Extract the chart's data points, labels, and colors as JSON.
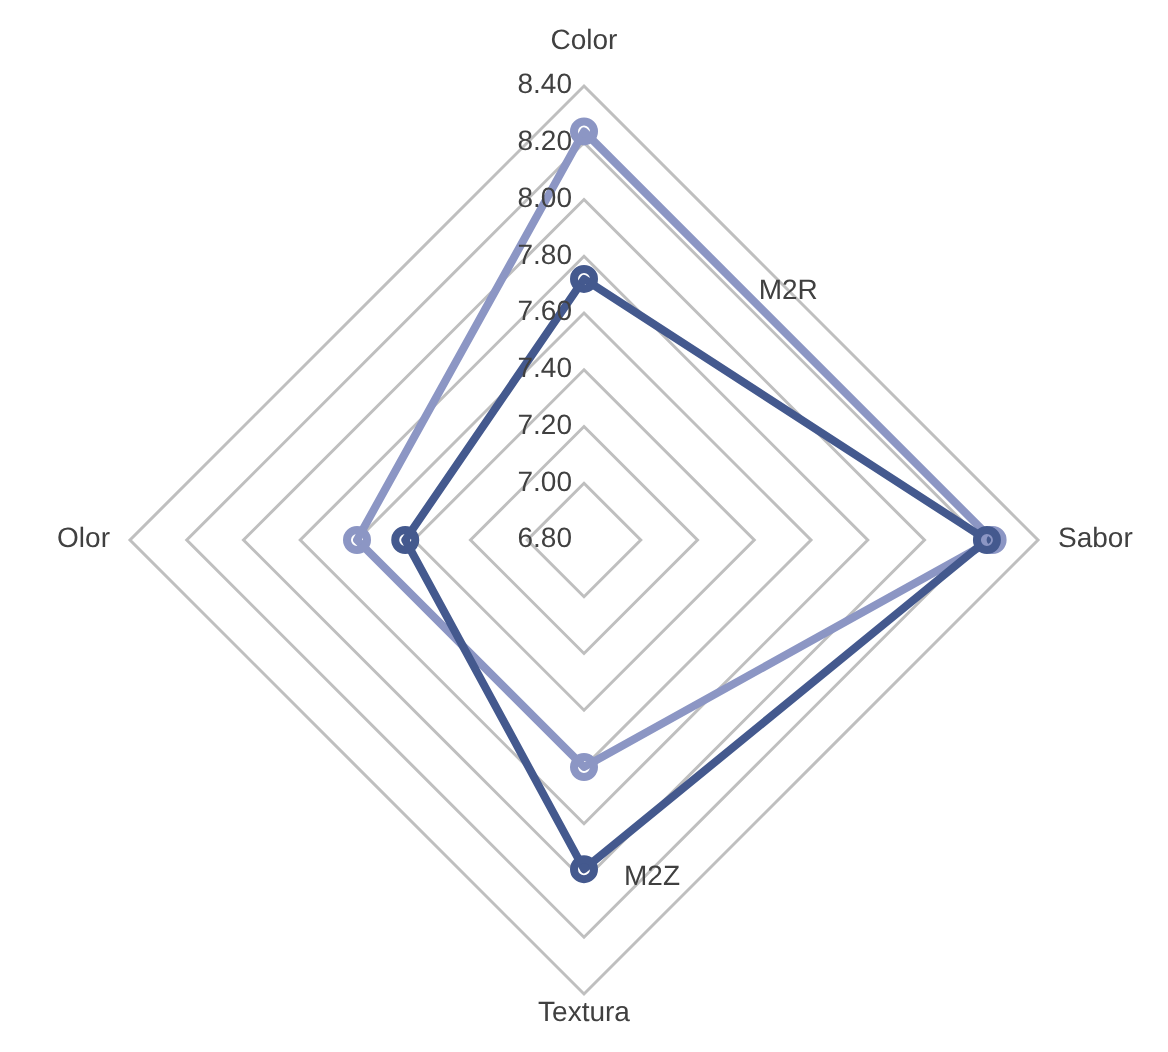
{
  "chart_data": {
    "type": "radar",
    "categories": [
      "Color",
      "Sabor",
      "Textura",
      "Olor"
    ],
    "series": [
      {
        "name": "M2R",
        "color": "#8c96c4",
        "values": [
          8.24,
          8.24,
          7.6,
          7.6
        ]
      },
      {
        "name": "M2Z",
        "color": "#44598e",
        "values": [
          7.72,
          8.22,
          7.96,
          7.43
        ]
      }
    ],
    "ylim": [
      6.8,
      8.4
    ],
    "yticks": [
      {
        "value": 6.8,
        "label": "6.80"
      },
      {
        "value": 7.0,
        "label": "7.00"
      },
      {
        "value": 7.2,
        "label": "7.20"
      },
      {
        "value": 7.4,
        "label": "7.40"
      },
      {
        "value": 7.6,
        "label": "7.60"
      },
      {
        "value": 7.8,
        "label": "7.80"
      },
      {
        "value": 8.0,
        "label": "8.00"
      },
      {
        "value": 8.2,
        "label": "8.20"
      },
      {
        "value": 8.4,
        "label": "8.40"
      }
    ],
    "grid": true,
    "marker": "circle",
    "line_style": "solid"
  }
}
